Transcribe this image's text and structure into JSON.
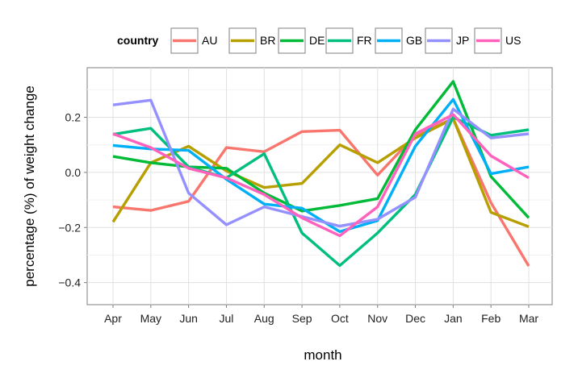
{
  "chart_data": {
    "type": "line",
    "xlabel": "month",
    "ylabel": "percentage (%) of weight change",
    "legend_title": "country",
    "legend_position": "top",
    "grid": true,
    "categories": [
      "Apr",
      "May",
      "Jun",
      "Jul",
      "Aug",
      "Sep",
      "Oct",
      "Nov",
      "Dec",
      "Jan",
      "Feb",
      "Mar"
    ],
    "ylim": [
      -0.48,
      0.38
    ],
    "yticks": [
      -0.4,
      -0.2,
      0.0,
      0.2
    ],
    "ytick_labels": [
      "−0.4",
      "−0.2",
      "0.0",
      "0.2"
    ],
    "series": [
      {
        "name": "AU",
        "color": "#F8766D",
        "values": [
          -0.125,
          -0.138,
          -0.105,
          0.09,
          0.075,
          0.148,
          0.153,
          -0.01,
          0.135,
          0.195,
          -0.11,
          -0.34
        ]
      },
      {
        "name": "BR",
        "color": "#B79F00",
        "values": [
          -0.18,
          0.035,
          0.095,
          0.005,
          -0.055,
          -0.04,
          0.1,
          0.035,
          0.125,
          0.195,
          -0.145,
          -0.197
        ]
      },
      {
        "name": "DE",
        "color": "#00BA38",
        "values": [
          0.058,
          0.035,
          0.02,
          0.015,
          -0.075,
          -0.14,
          -0.12,
          -0.095,
          0.155,
          0.33,
          -0.015,
          -0.165
        ]
      },
      {
        "name": "FR",
        "color": "#00BF7D",
        "values": [
          0.138,
          0.16,
          0.02,
          -0.02,
          0.068,
          -0.22,
          -0.338,
          -0.22,
          -0.08,
          0.2,
          0.135,
          0.155
        ]
      },
      {
        "name": "GB",
        "color": "#00B0F6",
        "values": [
          0.098,
          0.085,
          0.08,
          -0.025,
          -0.115,
          -0.13,
          -0.215,
          -0.175,
          0.095,
          0.265,
          -0.005,
          0.02
        ]
      },
      {
        "name": "JP",
        "color": "#9590FF",
        "values": [
          0.245,
          0.262,
          -0.075,
          -0.19,
          -0.125,
          -0.16,
          -0.195,
          -0.17,
          -0.09,
          0.23,
          0.125,
          0.14
        ]
      },
      {
        "name": "US",
        "color": "#FF62BC",
        "values": [
          0.14,
          0.09,
          0.015,
          -0.02,
          -0.08,
          -0.165,
          -0.23,
          -0.125,
          0.14,
          0.21,
          0.06,
          -0.02
        ]
      }
    ]
  }
}
